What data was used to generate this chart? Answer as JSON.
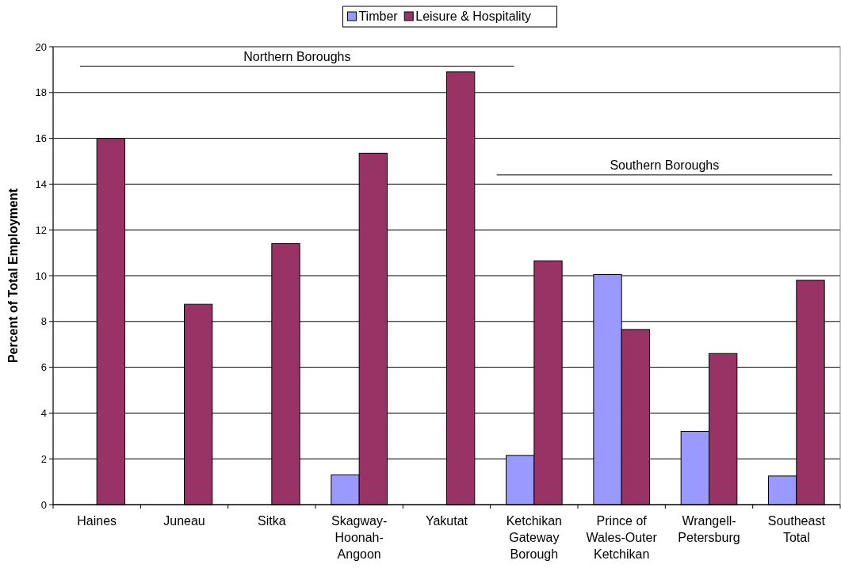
{
  "chart_data": {
    "type": "bar",
    "ylabel": "Percent of Total Employment",
    "categories": [
      "Haines",
      "Juneau",
      "Sitka",
      "Skagway-Hoonah-Angoon",
      "Yakutat",
      "Ketchikan Gateway Borough",
      "Prince of Wales-Outer Ketchikan",
      "Wrangell-Petersburg",
      "Southeast Total"
    ],
    "series": [
      {
        "name": "Timber",
        "color": "#9999ff",
        "values": [
          null,
          null,
          null,
          1.3,
          null,
          2.15,
          10.05,
          3.2,
          1.25
        ]
      },
      {
        "name": "Leisure & Hospitality",
        "color": "#993366",
        "values": [
          16.0,
          8.75,
          11.4,
          15.35,
          18.9,
          10.65,
          7.65,
          6.6,
          9.8
        ]
      }
    ],
    "ylim": [
      0,
      20
    ],
    "yticks": [
      0,
      2,
      4,
      6,
      8,
      10,
      12,
      14,
      16,
      18,
      20
    ],
    "grid": "y",
    "legend": "top",
    "ref_lines": [
      {
        "axis": "y",
        "value": 19.15,
        "label": "Northern Boroughs",
        "color": "#000000"
      },
      {
        "axis": "y",
        "value": 14.4,
        "label": "Southern Boroughs",
        "color": "#000000"
      }
    ]
  }
}
